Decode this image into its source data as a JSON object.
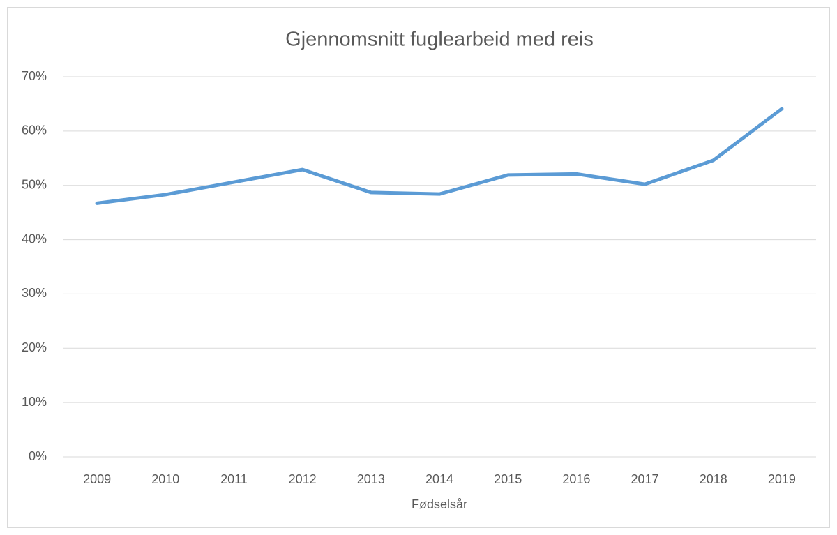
{
  "chart_data": {
    "type": "line",
    "title": "Gjennomsnitt fuglearbeid med reis",
    "x_label": "Fødselsår",
    "categories": [
      "2009",
      "2010",
      "2011",
      "2012",
      "2013",
      "2014",
      "2015",
      "2016",
      "2017",
      "2018",
      "2019"
    ],
    "series": [
      {
        "color": "#5b9bd5",
        "values": [
          46.7,
          48.3,
          50.6,
          52.9,
          48.7,
          48.4,
          51.9,
          52.1,
          50.2,
          54.6,
          64.1
        ]
      }
    ],
    "ylim": [
      0,
      70
    ],
    "yticks": [
      {
        "value": 0,
        "label": "0%"
      },
      {
        "value": 10,
        "label": "10%"
      },
      {
        "value": 20,
        "label": "20%"
      },
      {
        "value": 30,
        "label": "30%"
      },
      {
        "value": 40,
        "label": "40%"
      },
      {
        "value": 50,
        "label": "50%"
      },
      {
        "value": 60,
        "label": "60%"
      },
      {
        "value": 70,
        "label": "70%"
      }
    ],
    "grid": true
  }
}
